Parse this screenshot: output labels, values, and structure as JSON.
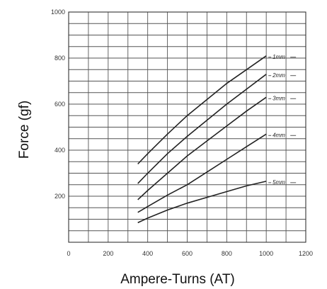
{
  "chart_data": {
    "type": "line",
    "xlabel": "Ampere-Turns (AT)",
    "ylabel": "Force (gf)",
    "xlim": [
      0,
      1200
    ],
    "ylim": [
      0,
      1000
    ],
    "x_ticks": [
      0,
      200,
      400,
      600,
      800,
      1000,
      1200
    ],
    "y_ticks": [
      200,
      400,
      600,
      800,
      1000
    ],
    "grid": true,
    "series": [
      {
        "name": "1mm",
        "x": [
          350,
          400,
          500,
          600,
          700,
          800,
          900,
          1000
        ],
        "y": [
          340,
          385,
          470,
          550,
          620,
          690,
          750,
          810
        ]
      },
      {
        "name": "2mm",
        "x": [
          350,
          400,
          500,
          600,
          700,
          800,
          900,
          1000
        ],
        "y": [
          255,
          300,
          385,
          460,
          530,
          600,
          665,
          730
        ]
      },
      {
        "name": "3mm",
        "x": [
          350,
          400,
          500,
          600,
          700,
          800,
          900,
          1000
        ],
        "y": [
          185,
          225,
          300,
          375,
          440,
          505,
          570,
          630
        ]
      },
      {
        "name": "4mm",
        "x": [
          350,
          400,
          500,
          600,
          700,
          800,
          900,
          1000
        ],
        "y": [
          130,
          155,
          205,
          250,
          305,
          360,
          415,
          470
        ]
      },
      {
        "name": "5mm",
        "x": [
          350,
          400,
          500,
          600,
          700,
          800,
          900,
          1000
        ],
        "y": [
          85,
          105,
          140,
          170,
          195,
          220,
          245,
          265
        ]
      }
    ]
  }
}
